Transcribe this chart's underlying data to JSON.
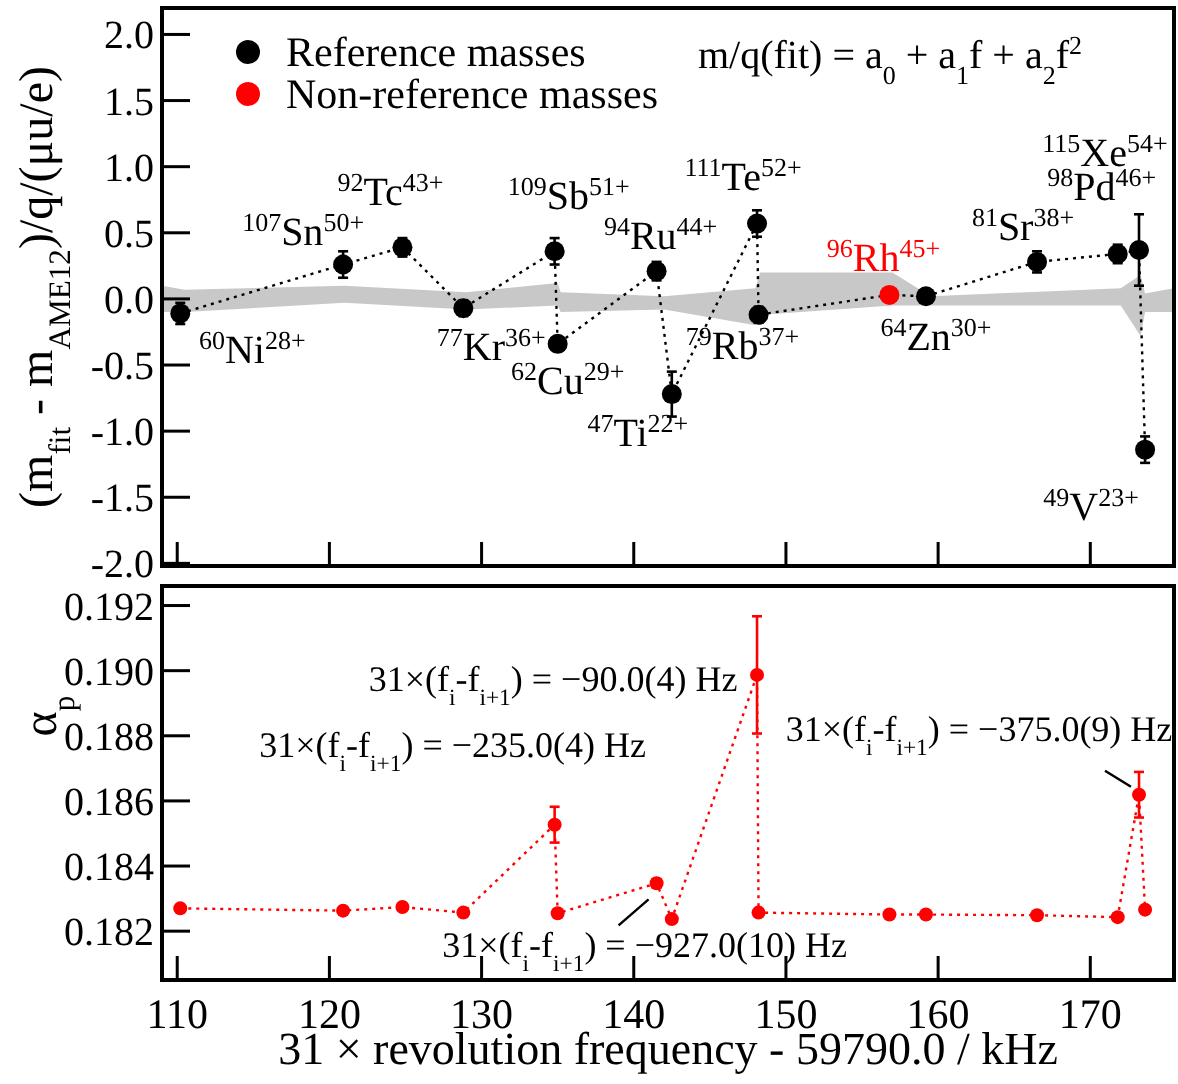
{
  "chart_data": [
    {
      "type": "scatter",
      "ylabel": "(m$_{fit}$ - m$_{AME12}$)/q/(μu/e)",
      "xlim": [
        109,
        175.5
      ],
      "xticks": [
        110,
        120,
        130,
        140,
        150,
        160,
        170
      ],
      "ylim": [
        -2.02,
        2.2
      ],
      "yticks": [
        {
          "value": -2,
          "label": "-2.0"
        },
        {
          "value": -1.5,
          "label": "-1.5"
        },
        {
          "value": -1,
          "label": "-1.0"
        },
        {
          "value": -0.5,
          "label": "-0.5"
        },
        {
          "value": 0,
          "label": "0.0"
        },
        {
          "value": 0.5,
          "label": "0.5"
        },
        {
          "value": 1,
          "label": "1.0"
        },
        {
          "value": 1.5,
          "label": "1.5"
        },
        {
          "value": 2,
          "label": "2.0"
        }
      ],
      "tick_labels": "y",
      "grid": false,
      "legend": "top left",
      "series": [
        {
          "type": "area",
          "color": "#c8c8c8",
          "x": [
            109,
            110.5,
            121,
            129,
            135,
            135.2,
            142,
            148,
            148.3,
            157,
            159.5,
            172,
            173.3,
            173.6,
            175.5
          ],
          "values": [
            0.1,
            0.07,
            0.1,
            0.05,
            0.12,
            0.05,
            0.02,
            0.08,
            0.2,
            0.2,
            0.02,
            0.08,
            0.18,
            0.04,
            0.08
          ]
        },
        {
          "type": "area",
          "color": "#c8c8c8",
          "x": [
            109,
            110.5,
            121,
            129,
            135,
            135.2,
            142,
            148,
            148.3,
            157,
            159.5,
            172,
            173.3,
            173.6,
            175.5
          ],
          "values": [
            -0.1,
            -0.1,
            -0.03,
            -0.08,
            -0.05,
            -0.1,
            -0.08,
            -0.2,
            -0.12,
            -0.05,
            -0.05,
            -0.05,
            -0.28,
            -0.1,
            -0.1
          ]
        },
        {
          "type": "line",
          "color": "#000000",
          "marker": "none",
          "line_style": "dotted",
          "x": [
            110.2,
            120.9,
            124.8,
            128.8,
            134.8,
            135.0,
            141.5,
            142.5,
            148.1,
            148.2,
            156.8,
            159.2,
            166.5,
            171.8,
            173.2,
            173.6
          ],
          "values": [
            -0.11,
            0.26,
            0.39,
            -0.07,
            0.36,
            -0.34,
            0.21,
            -0.72,
            0.57,
            -0.12,
            0.03,
            0.02,
            0.28,
            0.34,
            0.37,
            -1.14
          ]
        },
        {
          "name": "Reference masses",
          "color": "#000000",
          "marker": "circle",
          "x": [
            110.2,
            120.9,
            124.8,
            128.8,
            134.8,
            135.0,
            141.5,
            142.5,
            148.1,
            148.2,
            159.2,
            166.5,
            171.8,
            173.2,
            173.6
          ],
          "values": [
            -0.11,
            0.26,
            0.39,
            -0.07,
            0.36,
            -0.34,
            0.21,
            -0.72,
            0.57,
            -0.12,
            0.02,
            0.28,
            0.34,
            0.37,
            -1.14
          ],
          "errors": [
            0.08,
            0.1,
            0.07,
            0.06,
            0.1,
            0.05,
            0.07,
            0.17,
            0.1,
            0.06,
            0.05,
            0.08,
            0.07,
            0.27,
            0.1
          ]
        },
        {
          "name": "Non-reference masses",
          "color": "#ff0000",
          "marker": "circle",
          "x": [
            156.8
          ],
          "values": [
            0.03
          ]
        }
      ],
      "annotations": [
        "m/q(fit) = a$_{0}$ + a$_{1}$f + a$_{2}$f$^{2}$",
        {
          "text": "$^{60}$Ni$^{28+}$",
          "x": 110.2,
          "y": -0.11
        },
        {
          "text": "$^{107}$Sn$^{50+}$",
          "x": 120.9,
          "y": 0.26
        },
        {
          "text": "$^{92}$Tc$^{43+}$",
          "x": 124.8,
          "y": 0.39
        },
        {
          "text": "$^{77}$Kr$^{36+}$",
          "x": 128.8,
          "y": -0.07
        },
        {
          "text": "$^{109}$Sb$^{51+}$",
          "x": 134.8,
          "y": 0.36
        },
        {
          "text": "$^{62}$Cu$^{29+}$",
          "x": 135.0,
          "y": -0.34
        },
        {
          "text": "$^{94}$Ru$^{44+}$",
          "x": 141.5,
          "y": 0.21
        },
        {
          "text": "$^{47}$Ti$^{22+}$",
          "x": 142.5,
          "y": -0.72
        },
        {
          "text": "$^{111}$Te$^{52+}$",
          "x": 148.1,
          "y": 0.57
        },
        {
          "text": "$^{79}$Rb$^{37+}$",
          "x": 148.2,
          "y": -0.12
        },
        {
          "text": "$^{96}$Rh$^{45+}$",
          "x": 156.8,
          "y": 0.03
        },
        {
          "text": "$^{64}$Zn$^{30+}$",
          "x": 159.2,
          "y": 0.02
        },
        {
          "text": "$^{81}$Sr$^{38+}$",
          "x": 166.5,
          "y": 0.28
        },
        {
          "text": "$^{98}$Pd$^{46+}$",
          "x": 171.8,
          "y": 0.34
        },
        {
          "text": "$^{115}$Xe$^{54+}$",
          "x": 173.2,
          "y": 0.37
        },
        {
          "text": "$^{49}$V$^{23+}$",
          "x": 173.6,
          "y": -1.14
        }
      ]
    },
    {
      "type": "line",
      "xlabel": "31 × revolution frequency - 59790.0 / kHz",
      "ylabel": "α$_{p}$",
      "xlim": [
        109,
        175.5
      ],
      "xticks": [
        110,
        120,
        130,
        140,
        150,
        160,
        170
      ],
      "ylim": [
        0.1805,
        0.1926
      ],
      "yticks": [
        0.182,
        0.184,
        0.186,
        0.188,
        {
          "value": 0.19,
          "label": "0.190"
        },
        0.192
      ],
      "grid": false,
      "series": [
        {
          "color": "#ff0000",
          "marker": "circle",
          "line_style": "dotted",
          "x": [
            110.2,
            120.9,
            124.8,
            128.8,
            134.8,
            135.0,
            141.5,
            142.5,
            148.1,
            148.2,
            156.8,
            159.2,
            166.5,
            171.8,
            173.2,
            173.6
          ],
          "values": [
            0.1827,
            0.18263,
            0.18274,
            0.18257,
            0.18527,
            0.18255,
            0.18347,
            0.18237,
            0.18987,
            0.18257,
            0.18251,
            0.18251,
            0.18249,
            0.18243,
            0.18619,
            0.18266
          ],
          "errors": [
            null,
            null,
            null,
            null,
            0.00055,
            null,
            0.00013,
            null,
            0.0018,
            null,
            null,
            null,
            null,
            0.0001,
            0.0007,
            null
          ]
        }
      ],
      "annotations": [
        {
          "text": "31×(f$_{i}$-f$_{i+1}$) = −90.0(4) Hz",
          "x": 148.1,
          "y": 0.18987
        },
        {
          "text": "31×(f$_{i}$-f$_{i+1}$) = −235.0(4) Hz",
          "x": 134.8,
          "y": 0.18527
        },
        {
          "text": "31×(f$_{i}$-f$_{i+1}$) = −927.0(10) Hz",
          "x": 141.5,
          "y": 0.18347
        },
        {
          "text": "31×(f$_{i}$-f$_{i+1}$) = −375.0(9) Hz",
          "x": 173.2,
          "y": 0.18619
        }
      ]
    }
  ]
}
